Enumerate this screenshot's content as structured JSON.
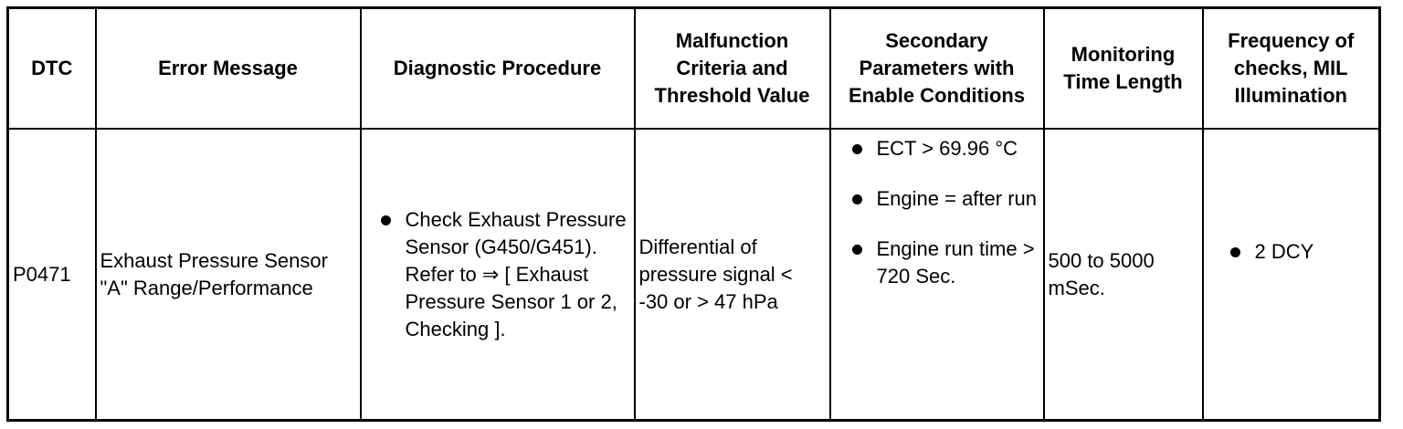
{
  "headers": {
    "dtc": "DTC",
    "error_message": "Error Message",
    "diagnostic_procedure": "Diagnostic Procedure",
    "malfunction_criteria": "Malfunction Criteria and Threshold Value",
    "secondary_parameters": "Secondary Parameters with Enable Conditions",
    "monitoring_time": "Monitoring Time Length",
    "frequency": "Frequency of checks, MIL Illumination"
  },
  "row": {
    "dtc": "P0471",
    "error_message": "Exhaust Pressure Sensor \"A\" Range/Performance",
    "diagnostic_procedure": [
      "Check Exhaust Pressure Sensor (G450/G451). Refer to ⇒ [ Exhaust Pressure Sensor 1 or 2, Checking ]."
    ],
    "malfunction_criteria": "Differential of pressure signal < -30 or > 47 hPa",
    "secondary_parameters": [
      "ECT > 69.96 °C",
      "Engine = after run",
      "Engine run time > 720 Sec."
    ],
    "monitoring_time": "500 to 5000 mSec.",
    "frequency": [
      "2 DCY"
    ]
  }
}
